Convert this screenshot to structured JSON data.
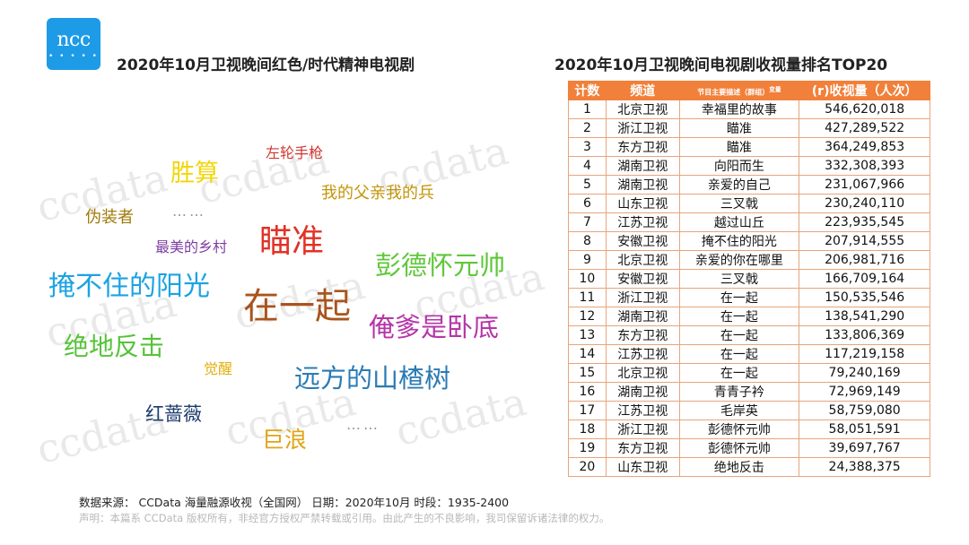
{
  "logo": {
    "text": "ncc",
    "dots": "• • • • •"
  },
  "left_title": "2020年10月卫视晚间红色/时代精神电视剧",
  "right_title": "2020年10月卫视晚间电视剧收视量排名TOP20",
  "watermark": "ccdata",
  "word_cloud": [
    {
      "text": "左轮手枪",
      "color": "#d2352f"
    },
    {
      "text": "胜算",
      "color": "#f2d60a"
    },
    {
      "text": "我的父亲我的兵",
      "color": "#c4950b"
    },
    {
      "text": "伪装者",
      "color": "#a27a0b"
    },
    {
      "text": "瞄准",
      "color": "#e23226"
    },
    {
      "text": "最美的乡村",
      "color": "#7e3ea3"
    },
    {
      "text": "彭德怀元帅",
      "color": "#5fc73a"
    },
    {
      "text": "掩不住的阳光",
      "color": "#1ba3e2"
    },
    {
      "text": "在一起",
      "color": "#a9541c"
    },
    {
      "text": "俺爹是卧底",
      "color": "#b535a8"
    },
    {
      "text": "绝地反击",
      "color": "#56c339"
    },
    {
      "text": "觉醒",
      "color": "#e2b00d"
    },
    {
      "text": "远方的山楂树",
      "color": "#2a7bb5"
    },
    {
      "text": "红蔷薇",
      "color": "#1c3c6c"
    },
    {
      "text": "巨浪",
      "color": "#e0a416"
    }
  ],
  "ellipsis_text": "……",
  "table": {
    "headers": {
      "rank": "计数",
      "channel": "频道",
      "program": "节目主要描述（群组）",
      "program_sup": "变量",
      "views": "(r)收视量（人次）"
    },
    "rows": [
      {
        "rank": "1",
        "channel": "北京卫视",
        "program": "幸福里的故事",
        "views": "546,620,018"
      },
      {
        "rank": "2",
        "channel": "浙江卫视",
        "program": "瞄准",
        "views": "427,289,522"
      },
      {
        "rank": "3",
        "channel": "东方卫视",
        "program": "瞄准",
        "views": "364,249,853"
      },
      {
        "rank": "4",
        "channel": "湖南卫视",
        "program": "向阳而生",
        "views": "332,308,393"
      },
      {
        "rank": "5",
        "channel": "湖南卫视",
        "program": "亲爱的自己",
        "views": "231,067,966"
      },
      {
        "rank": "6",
        "channel": "山东卫视",
        "program": "三叉戟",
        "views": "230,240,110"
      },
      {
        "rank": "7",
        "channel": "江苏卫视",
        "program": "越过山丘",
        "views": "223,935,545"
      },
      {
        "rank": "8",
        "channel": "安徽卫视",
        "program": "掩不住的阳光",
        "views": "207,914,555"
      },
      {
        "rank": "9",
        "channel": "北京卫视",
        "program": "亲爱的你在哪里",
        "views": "206,981,716"
      },
      {
        "rank": "10",
        "channel": "安徽卫视",
        "program": "三叉戟",
        "views": "166,709,164"
      },
      {
        "rank": "11",
        "channel": "浙江卫视",
        "program": "在一起",
        "views": "150,535,546"
      },
      {
        "rank": "12",
        "channel": "湖南卫视",
        "program": "在一起",
        "views": "138,541,290"
      },
      {
        "rank": "13",
        "channel": "东方卫视",
        "program": "在一起",
        "views": "133,806,369"
      },
      {
        "rank": "14",
        "channel": "江苏卫视",
        "program": "在一起",
        "views": "117,219,158"
      },
      {
        "rank": "15",
        "channel": "北京卫视",
        "program": "在一起",
        "views": "79,240,169"
      },
      {
        "rank": "16",
        "channel": "湖南卫视",
        "program": "青青子衿",
        "views": "72,969,149"
      },
      {
        "rank": "17",
        "channel": "江苏卫视",
        "program": "毛岸英",
        "views": "58,759,080"
      },
      {
        "rank": "18",
        "channel": "浙江卫视",
        "program": "彭德怀元帅",
        "views": "58,051,591"
      },
      {
        "rank": "19",
        "channel": "东方卫视",
        "program": "彭德怀元帅",
        "views": "39,697,767"
      },
      {
        "rank": "20",
        "channel": "山东卫视",
        "program": "绝地反击",
        "views": "24,388,375"
      }
    ]
  },
  "footer": {
    "source": "数据来源： CCData 海量融源收视（全国网）  日期：2020年10月  时段：1935-2400",
    "disclaimer": "声明：本篇系 CCData 版权所有，非经官方授权严禁转载或引用。由此产生的不良影响，我司保留诉诸法律的权力。"
  },
  "colors": {
    "accent": "#f1803a",
    "logo_bg": "#1d9be6"
  }
}
